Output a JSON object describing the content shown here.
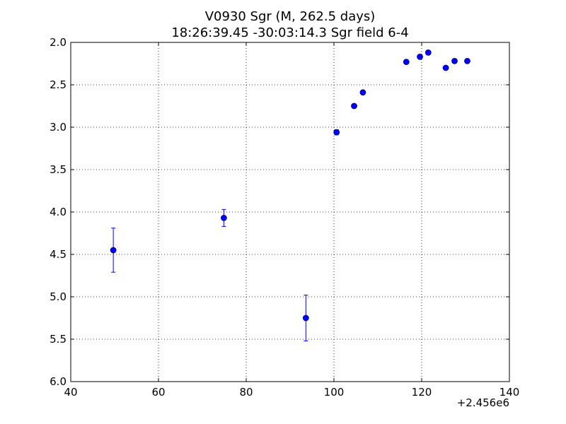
{
  "chart_data": {
    "type": "scatter",
    "title": "V0930 Sgr  (M, 262.5 days)",
    "subtitle": "18:26:39.45 -30:03:14.3 Sgr field 6-4",
    "xlabel": "",
    "ylabel": "",
    "x_offset_label": "+2.456e6",
    "xlim": [
      40,
      140
    ],
    "ylim": [
      6.0,
      2.0
    ],
    "y_inverted": true,
    "x_ticks": [
      40,
      60,
      80,
      100,
      120,
      140
    ],
    "x_tick_labels": [
      "40",
      "60",
      "80",
      "100",
      "120",
      "140"
    ],
    "y_ticks": [
      2.0,
      2.5,
      3.0,
      3.5,
      4.0,
      4.5,
      5.0,
      5.5,
      6.0
    ],
    "y_tick_labels": [
      "2.0",
      "2.5",
      "3.0",
      "3.5",
      "4.0",
      "4.5",
      "5.0",
      "5.5",
      "6.0"
    ],
    "grid": true,
    "marker_color": "#0000ff",
    "series": [
      {
        "points": [
          {
            "x": 49.7,
            "y": 4.45,
            "err": 0.26
          },
          {
            "x": 74.9,
            "y": 4.07,
            "err": 0.1
          },
          {
            "x": 93.6,
            "y": 5.25,
            "err": 0.27
          },
          {
            "x": 100.6,
            "y": 3.06,
            "err": 0.03
          },
          {
            "x": 104.6,
            "y": 2.75,
            "err": 0.02
          },
          {
            "x": 106.6,
            "y": 2.59,
            "err": 0.02
          },
          {
            "x": 116.5,
            "y": 2.23,
            "err": 0.02
          },
          {
            "x": 119.6,
            "y": 2.17,
            "err": 0.02
          },
          {
            "x": 121.5,
            "y": 2.12,
            "err": 0.02
          },
          {
            "x": 125.5,
            "y": 2.3,
            "err": 0.02
          },
          {
            "x": 127.5,
            "y": 2.22,
            "err": 0.02
          },
          {
            "x": 130.4,
            "y": 2.22,
            "err": 0.02
          }
        ]
      }
    ]
  }
}
